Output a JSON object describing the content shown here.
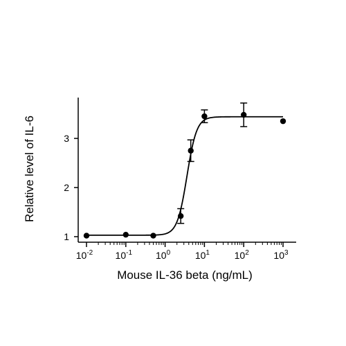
{
  "chart_data": {
    "type": "scatter",
    "title": "",
    "xlabel": "Mouse IL-36 beta (ng/mL)",
    "ylabel": "Relative level of IL-6",
    "x_scale": "log",
    "xlim": [
      0.01,
      1000
    ],
    "ylim": [
      0.95,
      3.75
    ],
    "x_ticks": [
      {
        "value": 0.01,
        "base": "10",
        "exp": "-2"
      },
      {
        "value": 0.1,
        "base": "10",
        "exp": "-1"
      },
      {
        "value": 1,
        "base": "10",
        "exp": "0"
      },
      {
        "value": 10,
        "base": "10",
        "exp": "1"
      },
      {
        "value": 100,
        "base": "10",
        "exp": "2"
      },
      {
        "value": 1000,
        "base": "10",
        "exp": "3"
      }
    ],
    "y_ticks": [
      {
        "value": 1,
        "label": "1"
      },
      {
        "value": 2,
        "label": "2"
      },
      {
        "value": 3,
        "label": "3"
      }
    ],
    "points": [
      {
        "x": 0.01,
        "y": 1.02,
        "err": 0
      },
      {
        "x": 0.1,
        "y": 1.04,
        "err": 0
      },
      {
        "x": 0.5,
        "y": 1.02,
        "err": 0
      },
      {
        "x": 2.5,
        "y": 1.42,
        "err": 0.15
      },
      {
        "x": 4.5,
        "y": 2.75,
        "err": 0.22
      },
      {
        "x": 10,
        "y": 3.45,
        "err": 0.13
      },
      {
        "x": 100,
        "y": 3.48,
        "err": 0.24
      },
      {
        "x": 1000,
        "y": 3.35,
        "err": 0
      }
    ],
    "fit_curve": {
      "model": "4PL",
      "bottom": 1.03,
      "top": 3.44,
      "ec50": 3.6,
      "hill": 3.5
    },
    "grid": false,
    "legend": "none"
  }
}
